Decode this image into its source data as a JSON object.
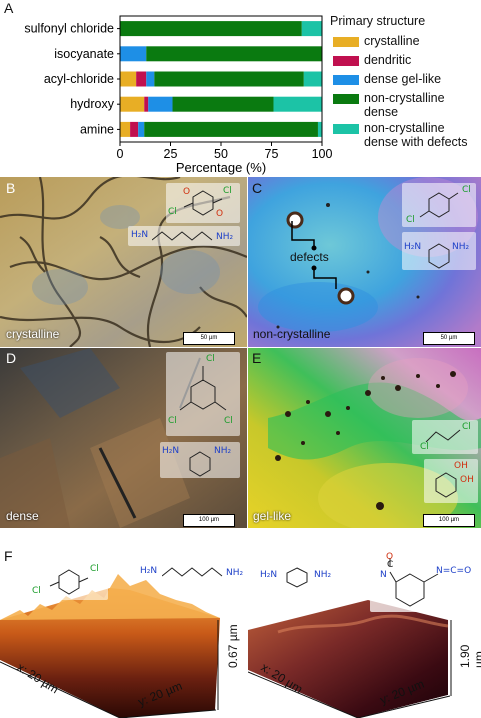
{
  "panel_labels": {
    "a": "A",
    "b": "B",
    "c": "C",
    "d": "D",
    "e": "E",
    "f": "F"
  },
  "legend_title": "Primary structure",
  "colors": {
    "crystalline": "#e8ae25",
    "dendritic": "#c0104f",
    "dense_gel": "#1e8fe6",
    "noncryst_dense": "#0a7a10",
    "noncryst_defects": "#1cc3a6"
  },
  "chart_data": {
    "type": "bar",
    "orientation": "horizontal",
    "stacked": true,
    "categories": [
      "sulfonyl chloride",
      "isocyanate",
      "acyl-chloride",
      "hydroxy",
      "amine"
    ],
    "series": [
      {
        "name": "crystalline",
        "values": [
          0,
          0,
          8,
          12,
          5
        ]
      },
      {
        "name": "dendritic",
        "values": [
          0,
          0,
          5,
          2,
          4
        ]
      },
      {
        "name": "dense gel-like",
        "values": [
          0,
          13,
          4,
          12,
          3
        ]
      },
      {
        "name": "non-crystalline dense",
        "values": [
          90,
          87,
          74,
          50,
          86
        ]
      },
      {
        "name": "non-crystalline dense with defects",
        "values": [
          10,
          0,
          9,
          24,
          2
        ]
      }
    ],
    "xlabel": "Percentage (%)",
    "xlim": [
      0,
      100
    ],
    "xticks": [
      "0",
      "25",
      "50",
      "75",
      "100"
    ],
    "legend_position": "right"
  },
  "legend_labels": [
    "crystalline",
    "dendritic",
    "dense gel-like",
    "non-crystalline",
    "dense",
    "non-crystalline",
    "dense with defects"
  ],
  "panel_b": {
    "caption": "crystalline",
    "scale": "50 µm",
    "chem_cl1": "Cl",
    "chem_cl2": "Cl",
    "chem_o1": "O",
    "chem_o2": "O",
    "chem_amine": "H₂N",
    "chem_amine2": "NH₂"
  },
  "panel_c": {
    "caption": "non-crystalline",
    "defects": "defects",
    "scale": "50 µm",
    "chem_cl1": "Cl",
    "chem_cl2": "Cl",
    "chem_amine": "H₂N",
    "chem_amine2": "NH₂"
  },
  "panel_d": {
    "caption": "dense",
    "scale": "100 µm",
    "chem_cl1": "Cl",
    "chem_cl2": "Cl",
    "chem_cl3": "Cl",
    "chem_amine": "H₂N",
    "chem_amine2": "NH₂"
  },
  "panel_e": {
    "caption": "gel-like",
    "scale": "100 µm",
    "chem_cl1": "Cl",
    "chem_cl2": "Cl",
    "chem_oh1": "OH",
    "chem_oh2": "OH"
  },
  "panel_f": {
    "left": {
      "x_axis": "x: 20 µm",
      "y_axis": "y: 20 µm",
      "z": "0.67 µm",
      "chem_cl1": "Cl",
      "chem_cl2": "Cl",
      "chem_amine": "H₂N",
      "chem_amine2": "NH₂"
    },
    "right": {
      "x_axis": "x: 20 µm",
      "y_axis": "y: 20 µm",
      "z": "1.90 µm",
      "chem_amine": "H₂N",
      "chem_amine2": "NH₂",
      "chem_nco1": "N=C=O",
      "chem_o": "O",
      "chem_c": "C",
      "chem_n": "N"
    }
  }
}
